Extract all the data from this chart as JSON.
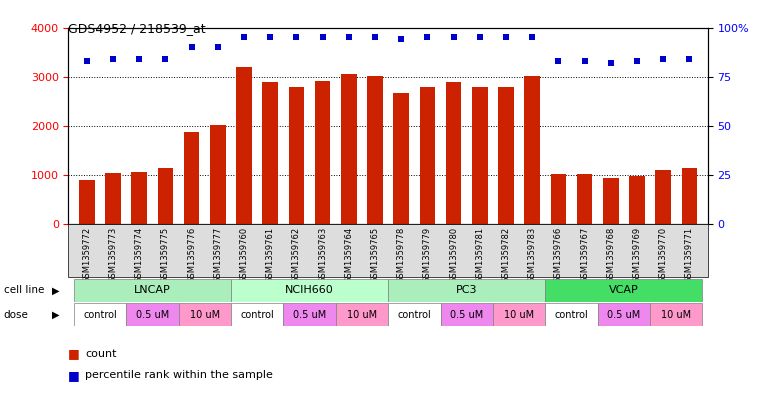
{
  "title": "GDS4952 / 218539_at",
  "samples": [
    "GSM1359772",
    "GSM1359773",
    "GSM1359774",
    "GSM1359775",
    "GSM1359776",
    "GSM1359777",
    "GSM1359760",
    "GSM1359761",
    "GSM1359762",
    "GSM1359763",
    "GSM1359764",
    "GSM1359765",
    "GSM1359778",
    "GSM1359779",
    "GSM1359780",
    "GSM1359781",
    "GSM1359782",
    "GSM1359783",
    "GSM1359766",
    "GSM1359767",
    "GSM1359768",
    "GSM1359769",
    "GSM1359770",
    "GSM1359771"
  ],
  "counts": [
    900,
    1030,
    1060,
    1130,
    1880,
    2020,
    3200,
    2900,
    2780,
    2920,
    3060,
    3020,
    2660,
    2780,
    2900,
    2780,
    2780,
    3020,
    1020,
    1010,
    930,
    980,
    1100,
    1150
  ],
  "percentiles": [
    83,
    84,
    84,
    84,
    90,
    90,
    95,
    95,
    95,
    95,
    95,
    95,
    94,
    95,
    95,
    95,
    95,
    95,
    83,
    83,
    82,
    83,
    84,
    84
  ],
  "cell_lines": [
    {
      "name": "LNCAP",
      "start": 0,
      "end": 6,
      "color": "#AAEEBB"
    },
    {
      "name": "NCIH660",
      "start": 6,
      "end": 12,
      "color": "#BBFFCC"
    },
    {
      "name": "PC3",
      "start": 12,
      "end": 18,
      "color": "#AAEEBB"
    },
    {
      "name": "VCAP",
      "start": 18,
      "end": 24,
      "color": "#44DD66"
    }
  ],
  "dose_groups": [
    {
      "label": "control",
      "start": 0,
      "end": 2,
      "color": "#FFFFFF"
    },
    {
      "label": "0.5 uM",
      "start": 2,
      "end": 4,
      "color": "#EE88EE"
    },
    {
      "label": "10 uM",
      "start": 4,
      "end": 6,
      "color": "#FF99CC"
    },
    {
      "label": "control",
      "start": 6,
      "end": 8,
      "color": "#FFFFFF"
    },
    {
      "label": "0.5 uM",
      "start": 8,
      "end": 10,
      "color": "#EE88EE"
    },
    {
      "label": "10 uM",
      "start": 10,
      "end": 12,
      "color": "#FF99CC"
    },
    {
      "label": "control",
      "start": 12,
      "end": 14,
      "color": "#FFFFFF"
    },
    {
      "label": "0.5 uM",
      "start": 14,
      "end": 16,
      "color": "#EE88EE"
    },
    {
      "label": "10 uM",
      "start": 16,
      "end": 18,
      "color": "#FF99CC"
    },
    {
      "label": "control",
      "start": 18,
      "end": 20,
      "color": "#FFFFFF"
    },
    {
      "label": "0.5 uM",
      "start": 20,
      "end": 22,
      "color": "#EE88EE"
    },
    {
      "label": "10 uM",
      "start": 22,
      "end": 24,
      "color": "#FF99CC"
    }
  ],
  "bar_color": "#CC2200",
  "dot_color": "#0000CC",
  "background_color": "#FFFFFF",
  "ylim_left": [
    0,
    4000
  ],
  "ylim_right": [
    0,
    100
  ],
  "yticks_left": [
    0,
    1000,
    2000,
    3000,
    4000
  ],
  "ytick_labels_left": [
    "0",
    "1000",
    "2000",
    "3000",
    "4000"
  ],
  "yticks_right": [
    0,
    25,
    50,
    75,
    100
  ],
  "ytick_labels_right": [
    "0",
    "25",
    "50",
    "75",
    "100%"
  ],
  "xticklabel_bg": "#DDDDDD"
}
